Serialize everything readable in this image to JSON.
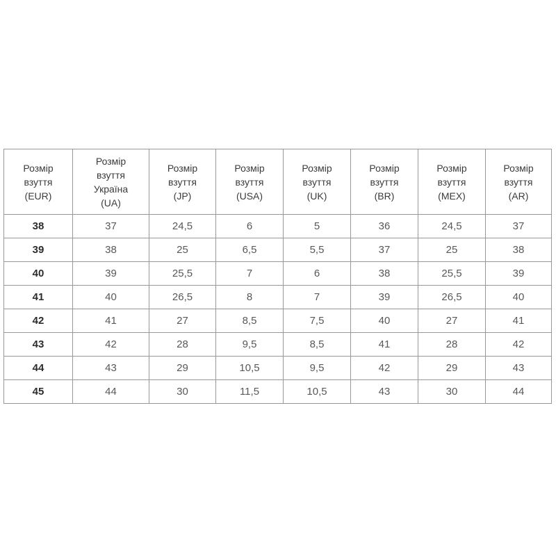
{
  "page": {
    "background_color": "#ffffff"
  },
  "table": {
    "name": "shoe-size-conversion-table",
    "border_color": "#979797",
    "header_text_color": "#3b3b3b",
    "data_text_color": "#58585a",
    "key_column_text_color": "#2c2c2c",
    "columns": [
      {
        "id": "eur",
        "label": "Розмір взуття (EUR)",
        "label_lines": [
          "Розмір",
          "взуття",
          "(EUR)"
        ]
      },
      {
        "id": "ua",
        "label": "Розмір взуття Україна (UA)",
        "label_lines": [
          "Розмір",
          "взуття",
          "Україна",
          "(UA)"
        ]
      },
      {
        "id": "jp",
        "label": "Розмір взуття (JP)",
        "label_lines": [
          "Розмір",
          "взуття",
          "(JP)"
        ]
      },
      {
        "id": "usa",
        "label": "Розмір взуття (USA)",
        "label_lines": [
          "Розмір",
          "взуття",
          "(USA)"
        ]
      },
      {
        "id": "uk",
        "label": "Розмір взуття (UK)",
        "label_lines": [
          "Розмір",
          "взуття",
          "(UK)"
        ]
      },
      {
        "id": "br",
        "label": "Розмір взуття (BR)",
        "label_lines": [
          "Розмір",
          "взуття",
          "(BR)"
        ]
      },
      {
        "id": "mex",
        "label": "Розмір взуття (MEX)",
        "label_lines": [
          "Розмір",
          "взуття",
          "(MEX)"
        ]
      },
      {
        "id": "ar",
        "label": "Розмір взуття (AR)",
        "label_lines": [
          "Розмір",
          "взуття",
          "(AR)"
        ]
      }
    ],
    "rows": [
      [
        "38",
        "37",
        "24,5",
        "6",
        "5",
        "36",
        "24,5",
        "37"
      ],
      [
        "39",
        "38",
        "25",
        "6,5",
        "5,5",
        "37",
        "25",
        "38"
      ],
      [
        "40",
        "39",
        "25,5",
        "7",
        "6",
        "38",
        "25,5",
        "39"
      ],
      [
        "41",
        "40",
        "26,5",
        "8",
        "7",
        "39",
        "26,5",
        "40"
      ],
      [
        "42",
        "41",
        "27",
        "8,5",
        "7,5",
        "40",
        "27",
        "41"
      ],
      [
        "43",
        "42",
        "28",
        "9,5",
        "8,5",
        "41",
        "28",
        "42"
      ],
      [
        "44",
        "43",
        "29",
        "10,5",
        "9,5",
        "42",
        "29",
        "43"
      ],
      [
        "45",
        "44",
        "30",
        "11,5",
        "10,5",
        "43",
        "30",
        "44"
      ]
    ]
  },
  "chart_data": {
    "type": "table",
    "title": "",
    "columns": [
      "Розмір взуття (EUR)",
      "Розмір взуття Україна (UA)",
      "Розмір взуття (JP)",
      "Розмір взуття (USA)",
      "Розмір взуття (UK)",
      "Розмір взуття (BR)",
      "Розмір взуття (MEX)",
      "Розмір взуття (AR)"
    ],
    "rows": [
      [
        "38",
        "37",
        "24,5",
        "6",
        "5",
        "36",
        "24,5",
        "37"
      ],
      [
        "39",
        "38",
        "25",
        "6,5",
        "5,5",
        "37",
        "25",
        "38"
      ],
      [
        "40",
        "39",
        "25,5",
        "7",
        "6",
        "38",
        "25,5",
        "39"
      ],
      [
        "41",
        "40",
        "26,5",
        "8",
        "7",
        "39",
        "26,5",
        "40"
      ],
      [
        "42",
        "41",
        "27",
        "8,5",
        "7,5",
        "40",
        "27",
        "41"
      ],
      [
        "43",
        "42",
        "28",
        "9,5",
        "8,5",
        "41",
        "28",
        "42"
      ],
      [
        "44",
        "43",
        "29",
        "10,5",
        "9,5",
        "42",
        "29",
        "43"
      ],
      [
        "45",
        "44",
        "30",
        "11,5",
        "10,5",
        "43",
        "30",
        "44"
      ]
    ]
  }
}
